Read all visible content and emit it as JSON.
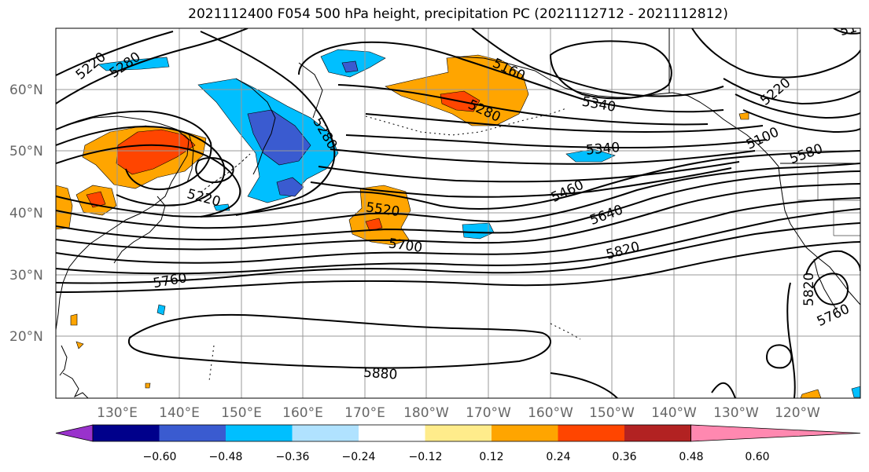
{
  "title": "2021112400 F054 500 hPa height, precipitation PC (2021112712 - 2021112812)",
  "lat_labels": [
    "60°N",
    "50°N",
    "40°N",
    "30°N",
    "20°N"
  ],
  "lon_labels": [
    "130°E",
    "140°E",
    "150°E",
    "160°E",
    "170°E",
    "180°W",
    "170°W",
    "160°W",
    "150°W",
    "140°W",
    "130°W",
    "120°W"
  ],
  "colorbar": {
    "colors": [
      "#9932cc",
      "#00008b",
      "#3a5bd0",
      "#00bfff",
      "#b0e2ff",
      "#ffffff",
      "#ffec8b",
      "#ffa500",
      "#ff4500",
      "#b22222",
      "#ff88b0"
    ],
    "ticks": [
      "−0.60",
      "−0.48",
      "−0.36",
      "−0.24",
      "−0.12",
      "0.12",
      "0.24",
      "0.36",
      "0.48",
      "0.60"
    ]
  },
  "contour_labels": [
    "5220",
    "5280",
    "5220",
    "5280",
    "5160",
    "5280",
    "5340",
    "5220",
    "5100",
    "5580",
    "5340",
    "5460",
    "5640",
    "5520",
    "5700",
    "5820",
    "5760",
    "5880",
    "5820",
    "5760",
    "51"
  ]
}
